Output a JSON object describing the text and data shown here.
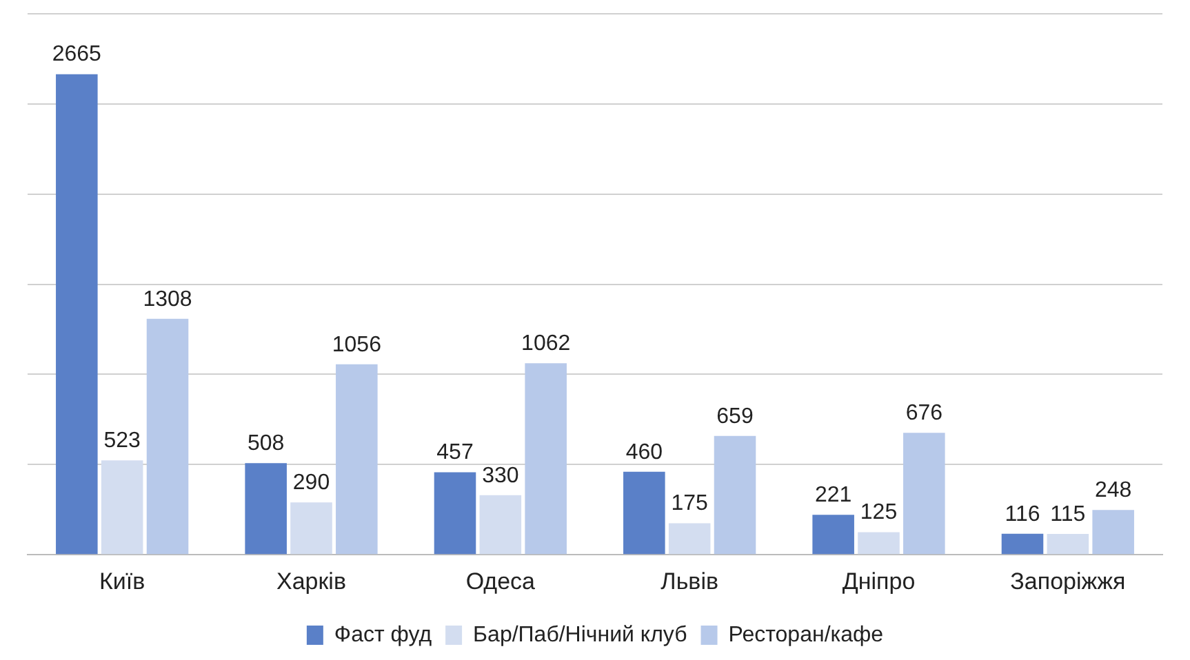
{
  "chart_data": {
    "type": "bar",
    "categories": [
      "Київ",
      "Харків",
      "Одеса",
      "Львів",
      "Дніпро",
      "Запоріжжя"
    ],
    "series": [
      {
        "name": "Фаст фуд",
        "color": "#5a80c8",
        "values": [
          2665,
          508,
          457,
          460,
          221,
          116
        ]
      },
      {
        "name": "Бар/Паб/Нічний клуб",
        "color": "#d3ddf0",
        "values": [
          523,
          290,
          330,
          175,
          125,
          115
        ]
      },
      {
        "name": "Ресторан/кафе",
        "color": "#b7c9ea",
        "values": [
          1308,
          1056,
          1062,
          659,
          676,
          248
        ]
      }
    ],
    "grid": "y",
    "legend": "bottom",
    "data_labels": true,
    "tick_labels": "x"
  }
}
